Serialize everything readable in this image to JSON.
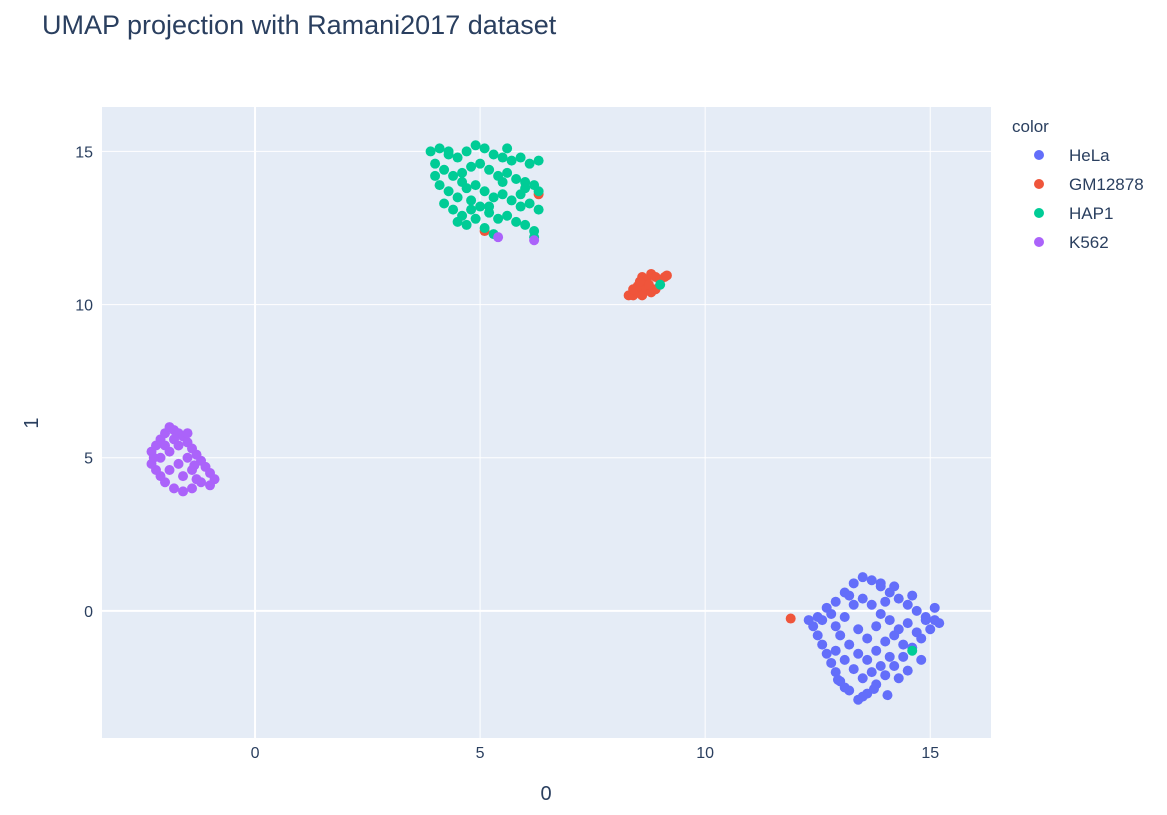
{
  "chart_data": {
    "type": "scatter",
    "title": "UMAP projection with Ramani2017 dataset",
    "xlabel": "0",
    "ylabel": "1",
    "xlim": [
      -3.4,
      16.35
    ],
    "ylim": [
      -4.15,
      16.45
    ],
    "x_ticks": [
      0,
      5,
      10,
      15
    ],
    "y_ticks": [
      0,
      5,
      10,
      15
    ],
    "grid": true,
    "legend_title": "color",
    "legend_position": "right",
    "plot_background": "#E5ECF6",
    "series": [
      {
        "name": "HeLa",
        "color": "#636EFA",
        "points": [
          [
            12.7,
            0.1
          ],
          [
            12.9,
            0.3
          ],
          [
            13.1,
            0.6
          ],
          [
            13.3,
            0.9
          ],
          [
            13.5,
            1.1
          ],
          [
            13.7,
            1.0
          ],
          [
            13.9,
            0.8
          ],
          [
            14.1,
            0.6
          ],
          [
            14.3,
            0.4
          ],
          [
            14.5,
            0.2
          ],
          [
            14.7,
            0.0
          ],
          [
            14.9,
            -0.2
          ],
          [
            15.1,
            0.1
          ],
          [
            15.2,
            -0.4
          ],
          [
            15.0,
            -0.6
          ],
          [
            14.8,
            -0.9
          ],
          [
            14.6,
            -1.2
          ],
          [
            14.4,
            -1.5
          ],
          [
            14.2,
            -1.8
          ],
          [
            14.0,
            -2.1
          ],
          [
            13.8,
            -2.4
          ],
          [
            13.6,
            -2.7
          ],
          [
            13.4,
            -2.9
          ],
          [
            13.2,
            -2.6
          ],
          [
            13.0,
            -2.3
          ],
          [
            12.9,
            -2.0
          ],
          [
            12.8,
            -1.7
          ],
          [
            12.7,
            -1.4
          ],
          [
            12.6,
            -1.1
          ],
          [
            12.5,
            -0.8
          ],
          [
            12.4,
            -0.5
          ],
          [
            12.3,
            -0.3
          ],
          [
            12.6,
            -0.3
          ],
          [
            12.9,
            -0.5
          ],
          [
            13.1,
            -0.2
          ],
          [
            13.3,
            0.2
          ],
          [
            13.5,
            0.4
          ],
          [
            13.7,
            0.2
          ],
          [
            13.9,
            -0.1
          ],
          [
            14.1,
            -0.3
          ],
          [
            14.3,
            -0.6
          ],
          [
            14.5,
            -0.4
          ],
          [
            14.7,
            -0.7
          ],
          [
            14.9,
            -0.3
          ],
          [
            13.0,
            -0.8
          ],
          [
            13.2,
            -1.1
          ],
          [
            13.4,
            -1.4
          ],
          [
            13.6,
            -1.6
          ],
          [
            13.8,
            -1.3
          ],
          [
            14.0,
            -1.0
          ],
          [
            14.2,
            -0.8
          ],
          [
            14.4,
            -1.1
          ],
          [
            13.3,
            -1.9
          ],
          [
            13.5,
            -2.2
          ],
          [
            13.7,
            -2.0
          ],
          [
            13.9,
            -1.8
          ],
          [
            14.1,
            -1.5
          ],
          [
            13.1,
            -1.6
          ],
          [
            12.9,
            -1.3
          ],
          [
            13.4,
            -0.6
          ],
          [
            13.6,
            -0.9
          ],
          [
            13.8,
            -0.5
          ],
          [
            14.0,
            0.3
          ],
          [
            13.2,
            0.5
          ],
          [
            12.8,
            -0.1
          ],
          [
            14.6,
            0.5
          ],
          [
            14.3,
            -2.2
          ],
          [
            13.5,
            -2.8
          ],
          [
            13.1,
            -2.5
          ],
          [
            14.8,
            -1.6
          ],
          [
            15.1,
            -0.3
          ],
          [
            12.5,
            -0.2
          ],
          [
            13.9,
            0.9
          ],
          [
            14.2,
            0.8
          ],
          [
            12.95,
            -2.25
          ],
          [
            13.75,
            -2.55
          ],
          [
            14.5,
            -1.95
          ],
          [
            14.05,
            -2.75
          ]
        ]
      },
      {
        "name": "GM12878",
        "color": "#EF553B",
        "points": [
          [
            8.3,
            10.3
          ],
          [
            8.4,
            10.3
          ],
          [
            8.5,
            10.4
          ],
          [
            8.6,
            10.6
          ],
          [
            8.7,
            10.8
          ],
          [
            8.8,
            11.0
          ],
          [
            8.9,
            10.9
          ],
          [
            9.0,
            10.8
          ],
          [
            9.1,
            10.9
          ],
          [
            8.5,
            10.6
          ],
          [
            8.6,
            10.3
          ],
          [
            8.7,
            10.5
          ],
          [
            8.8,
            10.4
          ],
          [
            8.9,
            10.5
          ],
          [
            8.4,
            10.5
          ],
          [
            8.6,
            10.9
          ],
          [
            8.75,
            10.65
          ],
          [
            8.55,
            10.75
          ],
          [
            9.15,
            10.95
          ],
          [
            11.9,
            -0.25
          ],
          [
            5.1,
            12.4
          ],
          [
            6.3,
            13.6
          ]
        ]
      },
      {
        "name": "HAP1",
        "color": "#00CC96",
        "points": [
          [
            3.9,
            15.0
          ],
          [
            4.1,
            15.1
          ],
          [
            4.3,
            14.9
          ],
          [
            4.5,
            14.8
          ],
          [
            4.7,
            15.0
          ],
          [
            4.9,
            15.2
          ],
          [
            5.1,
            15.1
          ],
          [
            5.3,
            14.9
          ],
          [
            5.5,
            14.8
          ],
          [
            5.7,
            14.7
          ],
          [
            5.9,
            14.8
          ],
          [
            6.1,
            14.6
          ],
          [
            6.3,
            14.7
          ],
          [
            4.0,
            14.6
          ],
          [
            4.2,
            14.4
          ],
          [
            4.4,
            14.2
          ],
          [
            4.6,
            14.3
          ],
          [
            4.8,
            14.5
          ],
          [
            5.0,
            14.6
          ],
          [
            5.2,
            14.4
          ],
          [
            5.4,
            14.2
          ],
          [
            5.6,
            14.3
          ],
          [
            5.8,
            14.1
          ],
          [
            6.0,
            14.0
          ],
          [
            6.2,
            13.9
          ],
          [
            6.3,
            13.7
          ],
          [
            4.1,
            13.9
          ],
          [
            4.3,
            13.7
          ],
          [
            4.5,
            13.5
          ],
          [
            4.7,
            13.8
          ],
          [
            4.9,
            13.9
          ],
          [
            5.1,
            13.7
          ],
          [
            5.3,
            13.5
          ],
          [
            5.5,
            13.6
          ],
          [
            5.7,
            13.4
          ],
          [
            5.9,
            13.2
          ],
          [
            6.1,
            13.3
          ],
          [
            6.3,
            13.1
          ],
          [
            4.2,
            13.3
          ],
          [
            4.4,
            13.1
          ],
          [
            4.6,
            12.9
          ],
          [
            4.8,
            13.1
          ],
          [
            5.0,
            13.2
          ],
          [
            5.2,
            13.0
          ],
          [
            5.4,
            12.8
          ],
          [
            5.6,
            12.9
          ],
          [
            5.8,
            12.7
          ],
          [
            6.0,
            12.6
          ],
          [
            4.5,
            12.7
          ],
          [
            4.7,
            12.6
          ],
          [
            4.9,
            12.8
          ],
          [
            5.1,
            12.5
          ],
          [
            5.3,
            12.3
          ],
          [
            6.2,
            12.4
          ],
          [
            6.2,
            12.2
          ],
          [
            4.0,
            14.2
          ],
          [
            4.6,
            14.0
          ],
          [
            5.5,
            14.0
          ],
          [
            5.9,
            13.6
          ],
          [
            4.8,
            13.4
          ],
          [
            5.2,
            13.2
          ],
          [
            6.0,
            13.8
          ],
          [
            4.3,
            15.0
          ],
          [
            5.6,
            15.1
          ],
          [
            9.0,
            10.65
          ],
          [
            14.6,
            -1.3
          ]
        ]
      },
      {
        "name": "K562",
        "color": "#AB63FA",
        "points": [
          [
            -2.3,
            5.2
          ],
          [
            -2.2,
            5.4
          ],
          [
            -2.1,
            5.6
          ],
          [
            -2.0,
            5.8
          ],
          [
            -1.9,
            6.0
          ],
          [
            -1.8,
            5.9
          ],
          [
            -1.7,
            5.8
          ],
          [
            -1.6,
            5.7
          ],
          [
            -1.5,
            5.5
          ],
          [
            -1.4,
            5.3
          ],
          [
            -1.3,
            5.1
          ],
          [
            -1.2,
            4.9
          ],
          [
            -1.1,
            4.7
          ],
          [
            -1.0,
            4.5
          ],
          [
            -0.9,
            4.3
          ],
          [
            -1.0,
            4.1
          ],
          [
            -1.2,
            4.2
          ],
          [
            -1.4,
            4.0
          ],
          [
            -1.6,
            3.9
          ],
          [
            -1.8,
            4.0
          ],
          [
            -2.0,
            4.2
          ],
          [
            -2.1,
            4.4
          ],
          [
            -2.2,
            4.6
          ],
          [
            -2.3,
            4.8
          ],
          [
            -2.1,
            5.0
          ],
          [
            -1.9,
            5.2
          ],
          [
            -1.7,
            5.4
          ],
          [
            -1.5,
            5.0
          ],
          [
            -1.7,
            4.8
          ],
          [
            -1.9,
            4.6
          ],
          [
            -1.6,
            4.4
          ],
          [
            -1.4,
            4.6
          ],
          [
            -1.3,
            4.3
          ],
          [
            -1.8,
            5.6
          ],
          [
            -2.0,
            5.4
          ],
          [
            -1.5,
            5.8
          ],
          [
            -2.25,
            5.0
          ],
          [
            -1.35,
            4.75
          ],
          [
            5.4,
            12.2
          ],
          [
            6.2,
            12.1
          ]
        ]
      }
    ]
  }
}
